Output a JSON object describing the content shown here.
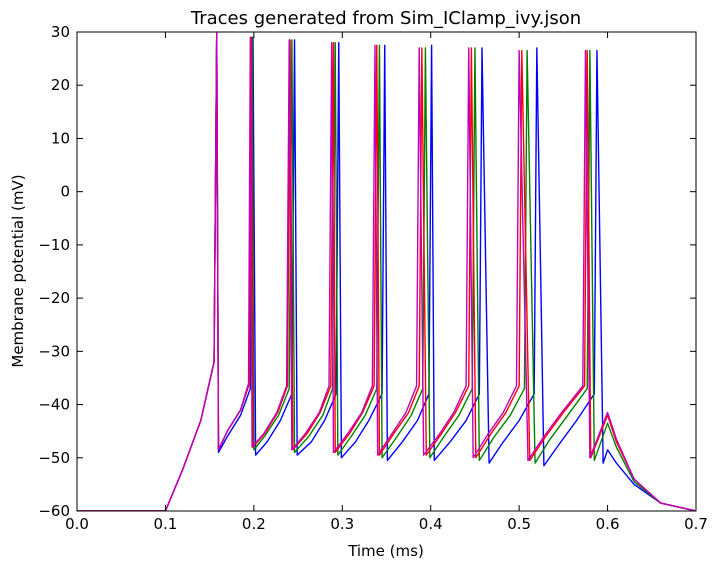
{
  "chart_data": {
    "type": "line",
    "title": "Traces generated from Sim_IClamp_ivy.json",
    "xlabel": "Time (ms)",
    "ylabel": "Membrane potential (mV)",
    "xlim": [
      0.0,
      0.7
    ],
    "ylim": [
      -60,
      30
    ],
    "xticks": [
      0.0,
      0.1,
      0.2,
      0.3,
      0.4,
      0.5,
      0.6,
      0.7
    ],
    "xtick_labels": [
      "0.0",
      "0.1",
      "0.2",
      "0.3",
      "0.4",
      "0.5",
      "0.6",
      "0.7"
    ],
    "yticks": [
      -60,
      -50,
      -40,
      -30,
      -20,
      -10,
      0,
      10,
      20,
      30
    ],
    "ytick_labels": [
      "−60",
      "−50",
      "−40",
      "−30",
      "−20",
      "−10",
      "0",
      "10",
      "20",
      "30"
    ],
    "grid": false,
    "legend": "none",
    "series": [
      {
        "color": "#0000ff",
        "points": [
          [
            0.0,
            -60
          ],
          [
            0.1,
            -60
          ],
          [
            0.12,
            -52
          ],
          [
            0.14,
            -43
          ],
          [
            0.155,
            -32
          ],
          [
            0.158,
            30
          ],
          [
            0.16,
            -49
          ],
          [
            0.17,
            -46
          ],
          [
            0.185,
            -42
          ],
          [
            0.196,
            -37
          ],
          [
            0.199,
            29
          ],
          [
            0.202,
            -49.5
          ],
          [
            0.215,
            -47
          ],
          [
            0.23,
            -43
          ],
          [
            0.243,
            -38
          ],
          [
            0.246,
            28.5
          ],
          [
            0.249,
            -49.5
          ],
          [
            0.265,
            -47
          ],
          [
            0.28,
            -43
          ],
          [
            0.293,
            -38
          ],
          [
            0.296,
            28
          ],
          [
            0.299,
            -50
          ],
          [
            0.315,
            -47
          ],
          [
            0.33,
            -43
          ],
          [
            0.345,
            -38
          ],
          [
            0.348,
            27.5
          ],
          [
            0.351,
            -50.5
          ],
          [
            0.368,
            -47
          ],
          [
            0.385,
            -43
          ],
          [
            0.398,
            -38
          ],
          [
            0.401,
            27.5
          ],
          [
            0.404,
            -50.5
          ],
          [
            0.422,
            -47
          ],
          [
            0.44,
            -43
          ],
          [
            0.455,
            -38
          ],
          [
            0.458,
            27
          ],
          [
            0.466,
            -51
          ],
          [
            0.48,
            -47.5
          ],
          [
            0.5,
            -43
          ],
          [
            0.517,
            -38
          ],
          [
            0.52,
            27
          ],
          [
            0.528,
            -51.5
          ],
          [
            0.545,
            -47.5
          ],
          [
            0.565,
            -43
          ],
          [
            0.585,
            -38
          ],
          [
            0.588,
            26.5
          ],
          [
            0.595,
            -51
          ],
          [
            0.6,
            -48.5
          ],
          [
            0.61,
            -51
          ],
          [
            0.63,
            -55
          ],
          [
            0.66,
            -58.5
          ],
          [
            0.7,
            -60
          ]
        ]
      },
      {
        "color": "#008000",
        "points": [
          [
            0.0,
            -60
          ],
          [
            0.1,
            -60
          ],
          [
            0.12,
            -52
          ],
          [
            0.14,
            -43
          ],
          [
            0.155,
            -32
          ],
          [
            0.158,
            30
          ],
          [
            0.16,
            -48.5
          ],
          [
            0.17,
            -45
          ],
          [
            0.185,
            -41
          ],
          [
            0.195,
            -36
          ],
          [
            0.198,
            29
          ],
          [
            0.2,
            -48.5
          ],
          [
            0.212,
            -46
          ],
          [
            0.228,
            -42
          ],
          [
            0.24,
            -37
          ],
          [
            0.243,
            28.5
          ],
          [
            0.246,
            -49
          ],
          [
            0.262,
            -46
          ],
          [
            0.278,
            -42
          ],
          [
            0.289,
            -37
          ],
          [
            0.292,
            28
          ],
          [
            0.295,
            -49.5
          ],
          [
            0.31,
            -46
          ],
          [
            0.326,
            -42
          ],
          [
            0.339,
            -37
          ],
          [
            0.342,
            27.5
          ],
          [
            0.345,
            -50
          ],
          [
            0.362,
            -46
          ],
          [
            0.378,
            -42
          ],
          [
            0.391,
            -37
          ],
          [
            0.394,
            27
          ],
          [
            0.399,
            -50
          ],
          [
            0.415,
            -46
          ],
          [
            0.432,
            -42
          ],
          [
            0.447,
            -37
          ],
          [
            0.45,
            27
          ],
          [
            0.455,
            -50.5
          ],
          [
            0.472,
            -46
          ],
          [
            0.49,
            -42
          ],
          [
            0.506,
            -37
          ],
          [
            0.509,
            26.5
          ],
          [
            0.518,
            -51
          ],
          [
            0.535,
            -46.5
          ],
          [
            0.555,
            -42
          ],
          [
            0.577,
            -37
          ],
          [
            0.58,
            26.5
          ],
          [
            0.585,
            -50.5
          ],
          [
            0.6,
            -43.5
          ],
          [
            0.61,
            -48
          ],
          [
            0.63,
            -54.5
          ],
          [
            0.66,
            -58.5
          ],
          [
            0.7,
            -60
          ]
        ]
      },
      {
        "color": "#ff0000",
        "points": [
          [
            0.0,
            -60
          ],
          [
            0.1,
            -60
          ],
          [
            0.12,
            -52
          ],
          [
            0.14,
            -43
          ],
          [
            0.155,
            -32
          ],
          [
            0.158,
            30
          ],
          [
            0.16,
            -48.5
          ],
          [
            0.17,
            -45
          ],
          [
            0.185,
            -41
          ],
          [
            0.195,
            -36
          ],
          [
            0.197,
            29
          ],
          [
            0.199,
            -48
          ],
          [
            0.212,
            -45.5
          ],
          [
            0.227,
            -41.5
          ],
          [
            0.238,
            -36.5
          ],
          [
            0.241,
            28.5
          ],
          [
            0.244,
            -48.5
          ],
          [
            0.26,
            -45.5
          ],
          [
            0.275,
            -41.5
          ],
          [
            0.287,
            -36.5
          ],
          [
            0.29,
            28
          ],
          [
            0.292,
            -49
          ],
          [
            0.308,
            -45.5
          ],
          [
            0.323,
            -41.5
          ],
          [
            0.336,
            -36.5
          ],
          [
            0.339,
            27.5
          ],
          [
            0.342,
            -49.5
          ],
          [
            0.358,
            -45.5
          ],
          [
            0.375,
            -41.5
          ],
          [
            0.387,
            -36.5
          ],
          [
            0.39,
            27
          ],
          [
            0.395,
            -49.5
          ],
          [
            0.412,
            -45.5
          ],
          [
            0.428,
            -41.5
          ],
          [
            0.443,
            -36.5
          ],
          [
            0.446,
            27
          ],
          [
            0.451,
            -50
          ],
          [
            0.468,
            -45.5
          ],
          [
            0.485,
            -41.5
          ],
          [
            0.5,
            -36.5
          ],
          [
            0.503,
            26.5
          ],
          [
            0.512,
            -50.5
          ],
          [
            0.53,
            -46
          ],
          [
            0.55,
            -41.5
          ],
          [
            0.574,
            -36.5
          ],
          [
            0.577,
            26.5
          ],
          [
            0.581,
            -50
          ],
          [
            0.6,
            -42
          ],
          [
            0.61,
            -47
          ],
          [
            0.63,
            -54
          ],
          [
            0.66,
            -58.5
          ],
          [
            0.7,
            -60
          ]
        ]
      },
      {
        "color": "#bf00bf",
        "points": [
          [
            0.0,
            -60
          ],
          [
            0.1,
            -60
          ],
          [
            0.12,
            -52
          ],
          [
            0.14,
            -43
          ],
          [
            0.155,
            -32
          ],
          [
            0.158,
            30
          ],
          [
            0.16,
            -48.5
          ],
          [
            0.17,
            -45
          ],
          [
            0.185,
            -41
          ],
          [
            0.194,
            -36
          ],
          [
            0.196,
            29
          ],
          [
            0.198,
            -48
          ],
          [
            0.211,
            -45.5
          ],
          [
            0.226,
            -41.5
          ],
          [
            0.237,
            -36.5
          ],
          [
            0.24,
            28.5
          ],
          [
            0.243,
            -48.5
          ],
          [
            0.258,
            -45.5
          ],
          [
            0.274,
            -41.5
          ],
          [
            0.285,
            -36.5
          ],
          [
            0.288,
            28
          ],
          [
            0.29,
            -49
          ],
          [
            0.306,
            -45.5
          ],
          [
            0.322,
            -41.5
          ],
          [
            0.334,
            -36.5
          ],
          [
            0.337,
            27.5
          ],
          [
            0.34,
            -49.5
          ],
          [
            0.356,
            -45.5
          ],
          [
            0.372,
            -41.5
          ],
          [
            0.384,
            -36.5
          ],
          [
            0.387,
            27
          ],
          [
            0.392,
            -49.5
          ],
          [
            0.41,
            -45.5
          ],
          [
            0.426,
            -41.5
          ],
          [
            0.44,
            -36.5
          ],
          [
            0.443,
            27
          ],
          [
            0.448,
            -50
          ],
          [
            0.465,
            -45.5
          ],
          [
            0.482,
            -41.5
          ],
          [
            0.497,
            -36.5
          ],
          [
            0.5,
            26.5
          ],
          [
            0.51,
            -50.5
          ],
          [
            0.528,
            -46
          ],
          [
            0.548,
            -41.5
          ],
          [
            0.572,
            -36.5
          ],
          [
            0.575,
            26.5
          ],
          [
            0.58,
            -50
          ],
          [
            0.6,
            -41.5
          ],
          [
            0.61,
            -46.5
          ],
          [
            0.63,
            -54
          ],
          [
            0.66,
            -58.5
          ],
          [
            0.7,
            -60
          ]
        ]
      }
    ]
  }
}
